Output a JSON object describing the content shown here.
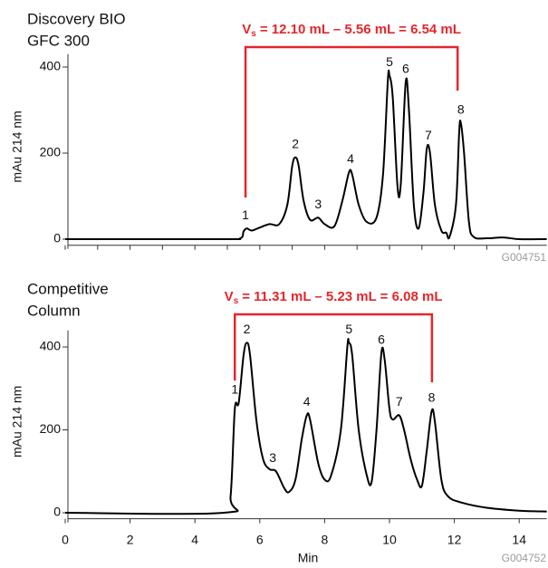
{
  "chart_data": [
    {
      "type": "line",
      "title": [
        "Discovery BIO",
        "GFC 300"
      ],
      "y_label": "mAu 214 nm",
      "code": "G004751",
      "annotation": {
        "main": "V",
        "sub": "s",
        "rest": "= 12.10 mL – 5.56 mL = 6.54 mL",
        "start": 5.56,
        "end": 12.1
      },
      "xlim": [
        0,
        14.85
      ],
      "xticks": [
        0,
        1,
        2,
        3,
        4,
        5,
        6,
        7,
        8,
        9,
        10,
        11,
        12,
        13,
        14
      ],
      "ylim": [
        -10,
        430
      ],
      "yticks": [
        0,
        200,
        400
      ],
      "series": [
        {
          "color": "#000000",
          "x": [
            0,
            4.8,
            5.4,
            5.5,
            5.6,
            5.75,
            6.0,
            6.3,
            6.6,
            6.85,
            7.0,
            7.1,
            7.2,
            7.35,
            7.55,
            7.8,
            8.0,
            8.3,
            8.55,
            8.75,
            8.85,
            9.05,
            9.3,
            9.6,
            9.8,
            9.95,
            10.0,
            10.1,
            10.25,
            10.35,
            10.5,
            10.6,
            10.75,
            10.9,
            11.05,
            11.15,
            11.25,
            11.4,
            11.6,
            11.75,
            11.85,
            12.05,
            12.15,
            12.2,
            12.3,
            12.45,
            12.6,
            13,
            13.5,
            14,
            14.85
          ],
          "values": [
            0,
            0,
            2,
            18,
            25,
            20,
            27,
            35,
            35,
            80,
            170,
            190,
            170,
            90,
            45,
            50,
            35,
            30,
            90,
            155,
            150,
            80,
            40,
            50,
            150,
            370,
            380,
            330,
            120,
            130,
            365,
            300,
            80,
            25,
            110,
            210,
            200,
            80,
            20,
            15,
            5,
            80,
            250,
            270,
            200,
            40,
            5,
            2,
            4,
            0,
            0
          ]
        }
      ],
      "peaks": [
        {
          "label": "1",
          "x": 5.56,
          "y": 25
        },
        {
          "label": "2",
          "x": 7.1,
          "y": 190
        },
        {
          "label": "3",
          "x": 7.8,
          "y": 50
        },
        {
          "label": "4",
          "x": 8.8,
          "y": 155
        },
        {
          "label": "5",
          "x": 10.0,
          "y": 380
        },
        {
          "label": "6",
          "x": 10.5,
          "y": 365
        },
        {
          "label": "7",
          "x": 11.2,
          "y": 210
        },
        {
          "label": "8",
          "x": 12.2,
          "y": 270
        }
      ]
    },
    {
      "type": "line",
      "title": [
        "Competitive",
        "Column"
      ],
      "y_label": "mAu 214 nm",
      "x_label": "Min",
      "code": "G004752",
      "annotation": {
        "main": "V",
        "sub": "s",
        "rest": "= 11.31 mL – 5.23 mL = 6.08 mL",
        "start": 5.23,
        "end": 11.31
      },
      "xlim": [
        0,
        14.85
      ],
      "xticks": [
        0,
        2,
        4,
        6,
        8,
        10,
        12,
        14
      ],
      "ylim": [
        -10,
        440
      ],
      "yticks": [
        0,
        200,
        400
      ],
      "series": [
        {
          "color": "#000000",
          "x": [
            0,
            4.9,
            5.1,
            5.23,
            5.35,
            5.5,
            5.6,
            5.7,
            5.9,
            6.1,
            6.3,
            6.5,
            6.75,
            6.9,
            7.1,
            7.3,
            7.45,
            7.55,
            7.8,
            8.0,
            8.2,
            8.5,
            8.7,
            8.75,
            8.85,
            9.05,
            9.3,
            9.45,
            9.6,
            9.75,
            9.85,
            10.0,
            10.1,
            10.3,
            10.45,
            10.65,
            10.85,
            11.0,
            11.15,
            11.3,
            11.4,
            11.6,
            11.8,
            12.2,
            13,
            14,
            14.85
          ],
          "values": [
            0,
            0,
            40,
            250,
            265,
            380,
            410,
            380,
            220,
            130,
            105,
            100,
            60,
            50,
            80,
            180,
            235,
            225,
            120,
            80,
            90,
            200,
            400,
            410,
            380,
            200,
            90,
            75,
            200,
            385,
            370,
            250,
            225,
            235,
            200,
            130,
            80,
            65,
            150,
            245,
            220,
            80,
            40,
            25,
            12,
            5,
            3
          ]
        }
      ],
      "peaks": [
        {
          "label": "1",
          "x": 5.23,
          "y": 265
        },
        {
          "label": "2",
          "x": 5.6,
          "y": 410
        },
        {
          "label": "3",
          "x": 6.4,
          "y": 100
        },
        {
          "label": "4",
          "x": 7.45,
          "y": 235
        },
        {
          "label": "5",
          "x": 8.75,
          "y": 410
        },
        {
          "label": "6",
          "x": 9.75,
          "y": 385
        },
        {
          "label": "7",
          "x": 10.3,
          "y": 235
        },
        {
          "label": "8",
          "x": 11.3,
          "y": 245
        }
      ]
    }
  ]
}
